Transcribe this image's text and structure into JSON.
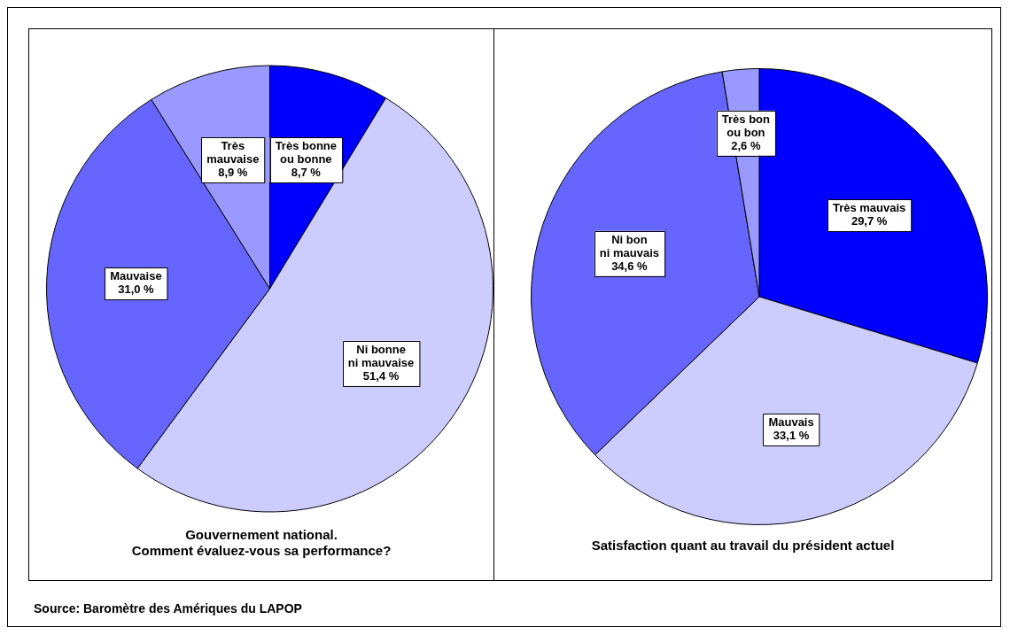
{
  "chart_data": [
    {
      "type": "pie",
      "title": "Gouvernement national.\nComment évaluez-vous sa performance?",
      "categories": [
        "Très bonne\nou bonne",
        "Ni bonne\nni mauvaise",
        "Mauvaise",
        "Très\nmauvaise"
      ],
      "values": [
        8.7,
        51.4,
        31.0,
        8.9
      ],
      "value_labels": [
        "8,7 %",
        "51,4 %",
        "31,0 %",
        "8,9 %"
      ],
      "colors": [
        "#0000ff",
        "#ccccff",
        "#6666ff",
        "#9999ff"
      ],
      "legend": false,
      "annotations": [
        "Source: Baromètre des Amériques du LAPOP"
      ]
    },
    {
      "type": "pie",
      "title": "Satisfaction quant au travail du président actuel",
      "categories": [
        "Très mauvais",
        "Mauvais",
        "Ni bon\nni mauvais",
        "Très bon\nou bon"
      ],
      "values": [
        29.7,
        33.1,
        34.6,
        2.6
      ],
      "value_labels": [
        "29,7 %",
        "33,1 %",
        "34,6 %",
        "2,6 %"
      ],
      "colors": [
        "#0000ff",
        "#ccccff",
        "#6666ff",
        "#9999ff"
      ],
      "legend": false
    }
  ]
}
